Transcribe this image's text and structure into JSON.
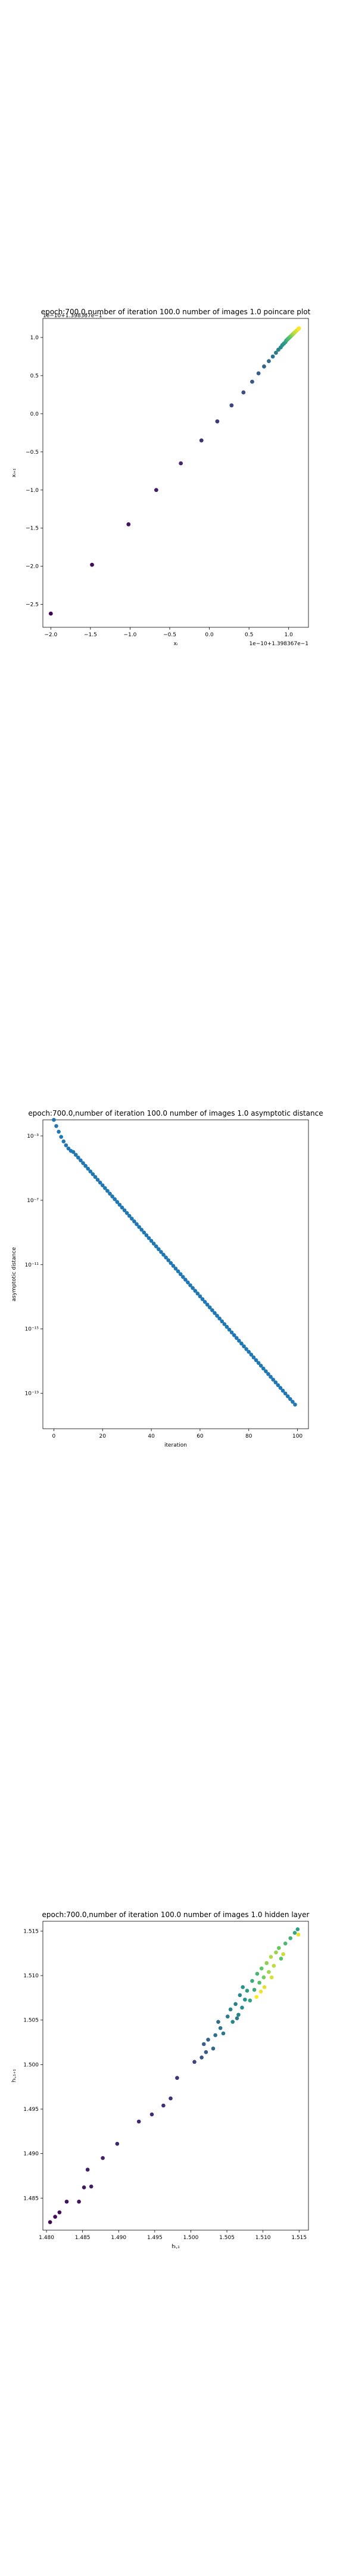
{
  "chart_data": [
    {
      "type": "scatter",
      "title": "epoch:700.0,number of iteration 100.0 number of images 1.0 poincare plot",
      "xlabel": "xᵢ",
      "ylabel": "xᵢ₊₁",
      "x_tick_labels": [
        "−2.0",
        "−1.5",
        "−1.0",
        "−0.5",
        "0.0",
        "0.5",
        "1.0"
      ],
      "x_ticks": [
        -2.0,
        -1.5,
        -1.0,
        -0.5,
        0.0,
        0.5,
        1.0
      ],
      "x_offset_text": "1e−10+1.398367e−1",
      "y_offset_text": "1e−10+1.398367e−1",
      "y_tick_labels": [
        "−2.5",
        "−2.0",
        "−1.5",
        "−1.0",
        "−0.5",
        "0.0",
        "0.5",
        "1.0"
      ],
      "y_ticks": [
        -2.5,
        -2.0,
        -1.5,
        -1.0,
        -0.5,
        0.0,
        0.5,
        1.0
      ],
      "xlim": [
        -2.1,
        1.25
      ],
      "ylim": [
        -2.8,
        1.25
      ],
      "grid": false,
      "colormap": "viridis",
      "points": [
        {
          "x": -2.0,
          "y": -2.62
        },
        {
          "x": -1.48,
          "y": -1.98
        },
        {
          "x": -1.02,
          "y": -1.45
        },
        {
          "x": -0.67,
          "y": -1.0
        },
        {
          "x": -0.36,
          "y": -0.65
        },
        {
          "x": -0.1,
          "y": -0.35
        },
        {
          "x": 0.1,
          "y": -0.1
        },
        {
          "x": 0.28,
          "y": 0.11
        },
        {
          "x": 0.43,
          "y": 0.28
        },
        {
          "x": 0.54,
          "y": 0.42
        },
        {
          "x": 0.62,
          "y": 0.53
        },
        {
          "x": 0.69,
          "y": 0.62
        },
        {
          "x": 0.75,
          "y": 0.69
        },
        {
          "x": 0.8,
          "y": 0.75
        },
        {
          "x": 0.84,
          "y": 0.8
        },
        {
          "x": 0.87,
          "y": 0.84
        },
        {
          "x": 0.9,
          "y": 0.87
        },
        {
          "x": 0.92,
          "y": 0.9
        },
        {
          "x": 0.94,
          "y": 0.92
        },
        {
          "x": 0.96,
          "y": 0.94
        },
        {
          "x": 0.97,
          "y": 0.96
        },
        {
          "x": 0.98,
          "y": 0.97
        },
        {
          "x": 0.99,
          "y": 0.98
        },
        {
          "x": 1.0,
          "y": 0.99
        },
        {
          "x": 1.01,
          "y": 1.0
        },
        {
          "x": 1.02,
          "y": 1.01
        },
        {
          "x": 1.03,
          "y": 1.02
        },
        {
          "x": 1.04,
          "y": 1.03
        },
        {
          "x": 1.05,
          "y": 1.04
        },
        {
          "x": 1.06,
          "y": 1.05
        },
        {
          "x": 1.07,
          "y": 1.06
        },
        {
          "x": 1.08,
          "y": 1.07
        },
        {
          "x": 1.1,
          "y": 1.09
        },
        {
          "x": 1.12,
          "y": 1.11
        },
        {
          "x": 1.13,
          "y": 1.12
        }
      ]
    },
    {
      "type": "scatter",
      "title": "epoch:700.0,number of iteration 100.0  number of images 1.0 asymptotic distance",
      "xlabel": "iteration",
      "ylabel": "asymptotic distance",
      "y_scale": "log",
      "x_tick_labels": [
        "0",
        "20",
        "40",
        "60",
        "80",
        "100"
      ],
      "x_ticks": [
        0,
        20,
        40,
        60,
        80,
        100
      ],
      "y_tick_labels": [
        "10⁻³",
        "10⁻⁷",
        "10⁻¹¹",
        "10⁻¹⁵",
        "10⁻¹⁹"
      ],
      "y_tick_exponents": [
        -3,
        -7,
        -11,
        -15,
        -19
      ],
      "xlim": [
        -4.5,
        104.5
      ],
      "ylog_range": [
        -21.2,
        -2.0
      ],
      "grid": false,
      "color": "#1f77b4",
      "curve": {
        "n_points": 100,
        "y0": 0.01,
        "knee_iteration": 8,
        "knee_value": 0.0001,
        "end_value": 2e-20
      }
    },
    {
      "type": "scatter",
      "title": "epoch:700.0,number of iteration 100.0  number of images 1.0 hidden layer",
      "xlabel": "hᵢ,₁",
      "ylabel": "hᵢ,₁₊₁",
      "x_tick_labels": [
        "1.480",
        "1.485",
        "1.490",
        "1.495",
        "1.500",
        "1.505",
        "1.510",
        "1.515"
      ],
      "x_ticks": [
        1.48,
        1.485,
        1.49,
        1.495,
        1.5,
        1.505,
        1.51,
        1.515
      ],
      "y_tick_labels": [
        "1.485",
        "1.490",
        "1.495",
        "1.500",
        "1.505",
        "1.510",
        "1.515"
      ],
      "y_ticks": [
        1.485,
        1.49,
        1.495,
        1.5,
        1.505,
        1.51,
        1.515
      ],
      "xlim": [
        1.4795,
        1.5163
      ],
      "ylim": [
        1.4814,
        1.5161
      ],
      "grid": false,
      "colormap": "viridis",
      "points": [
        {
          "x": 1.4805,
          "y": 1.4823,
          "c": 0.02
        },
        {
          "x": 1.4812,
          "y": 1.4829,
          "c": 0.03
        },
        {
          "x": 1.4818,
          "y": 1.4834,
          "c": 0.04
        },
        {
          "x": 1.4828,
          "y": 1.4846,
          "c": 0.05
        },
        {
          "x": 1.4845,
          "y": 1.4846,
          "c": 0.06
        },
        {
          "x": 1.4852,
          "y": 1.4862,
          "c": 0.07
        },
        {
          "x": 1.4862,
          "y": 1.4863,
          "c": 0.08
        },
        {
          "x": 1.4857,
          "y": 1.4882,
          "c": 0.09
        },
        {
          "x": 1.4878,
          "y": 1.4895,
          "c": 0.1
        },
        {
          "x": 1.4898,
          "y": 1.4911,
          "c": 0.11
        },
        {
          "x": 1.4928,
          "y": 1.4936,
          "c": 0.12
        },
        {
          "x": 1.4946,
          "y": 1.4944,
          "c": 0.13
        },
        {
          "x": 1.4962,
          "y": 1.4954,
          "c": 0.14
        },
        {
          "x": 1.4972,
          "y": 1.4962,
          "c": 0.15
        },
        {
          "x": 1.4981,
          "y": 1.4985,
          "c": 0.16
        },
        {
          "x": 1.5005,
          "y": 1.5003,
          "c": 0.2
        },
        {
          "x": 1.5015,
          "y": 1.5008,
          "c": 0.25
        },
        {
          "x": 1.5021,
          "y": 1.5014,
          "c": 0.28
        },
        {
          "x": 1.5018,
          "y": 1.5023,
          "c": 0.3
        },
        {
          "x": 1.5024,
          "y": 1.5028,
          "c": 0.32
        },
        {
          "x": 1.5031,
          "y": 1.5018,
          "c": 0.34
        },
        {
          "x": 1.5034,
          "y": 1.5033,
          "c": 0.36
        },
        {
          "x": 1.5041,
          "y": 1.5041,
          "c": 0.38
        },
        {
          "x": 1.5038,
          "y": 1.5048,
          "c": 0.35
        },
        {
          "x": 1.5045,
          "y": 1.5035,
          "c": 0.4
        },
        {
          "x": 1.5051,
          "y": 1.5054,
          "c": 0.42
        },
        {
          "x": 1.5055,
          "y": 1.5062,
          "c": 0.45
        },
        {
          "x": 1.5062,
          "y": 1.5068,
          "c": 0.43
        },
        {
          "x": 1.5058,
          "y": 1.5048,
          "c": 0.47
        },
        {
          "x": 1.5066,
          "y": 1.5056,
          "c": 0.44
        },
        {
          "x": 1.5071,
          "y": 1.5064,
          "c": 0.48
        },
        {
          "x": 1.5075,
          "y": 1.5073,
          "c": 0.5
        },
        {
          "x": 1.5068,
          "y": 1.5078,
          "c": 0.46
        },
        {
          "x": 1.5078,
          "y": 1.5083,
          "c": 0.55
        },
        {
          "x": 1.5082,
          "y": 1.5072,
          "c": 0.58
        },
        {
          "x": 1.5085,
          "y": 1.5094,
          "c": 0.62
        },
        {
          "x": 1.5088,
          "y": 1.5084,
          "c": 0.6
        },
        {
          "x": 1.5092,
          "y": 1.5102,
          "c": 0.66
        },
        {
          "x": 1.5095,
          "y": 1.5092,
          "c": 0.7
        },
        {
          "x": 1.5098,
          "y": 1.5108,
          "c": 0.74
        },
        {
          "x": 1.5101,
          "y": 1.5098,
          "c": 0.78
        },
        {
          "x": 1.5105,
          "y": 1.5114,
          "c": 0.82
        },
        {
          "x": 1.5108,
          "y": 1.5104,
          "c": 0.86
        },
        {
          "x": 1.5111,
          "y": 1.5121,
          "c": 0.88
        },
        {
          "x": 1.5115,
          "y": 1.5111,
          "c": 0.9
        },
        {
          "x": 1.5118,
          "y": 1.5126,
          "c": 0.84
        },
        {
          "x": 1.5122,
          "y": 1.5131,
          "c": 0.76
        },
        {
          "x": 1.5125,
          "y": 1.5119,
          "c": 0.72
        },
        {
          "x": 1.5131,
          "y": 1.5136,
          "c": 0.68
        },
        {
          "x": 1.5138,
          "y": 1.5142,
          "c": 0.64
        },
        {
          "x": 1.5144,
          "y": 1.5148,
          "c": 0.6
        },
        {
          "x": 1.5148,
          "y": 1.5152,
          "c": 0.56
        },
        {
          "x": 1.5102,
          "y": 1.5087,
          "c": 0.96
        },
        {
          "x": 1.5097,
          "y": 1.5082,
          "c": 0.98
        },
        {
          "x": 1.5091,
          "y": 1.5076,
          "c": 1.0
        },
        {
          "x": 1.5112,
          "y": 1.5098,
          "c": 0.94
        },
        {
          "x": 1.5128,
          "y": 1.5124,
          "c": 0.92
        },
        {
          "x": 1.5149,
          "y": 1.5146,
          "c": 0.97
        },
        {
          "x": 1.5072,
          "y": 1.5087,
          "c": 0.52
        },
        {
          "x": 1.5064,
          "y": 1.5052,
          "c": 0.41
        }
      ]
    }
  ]
}
